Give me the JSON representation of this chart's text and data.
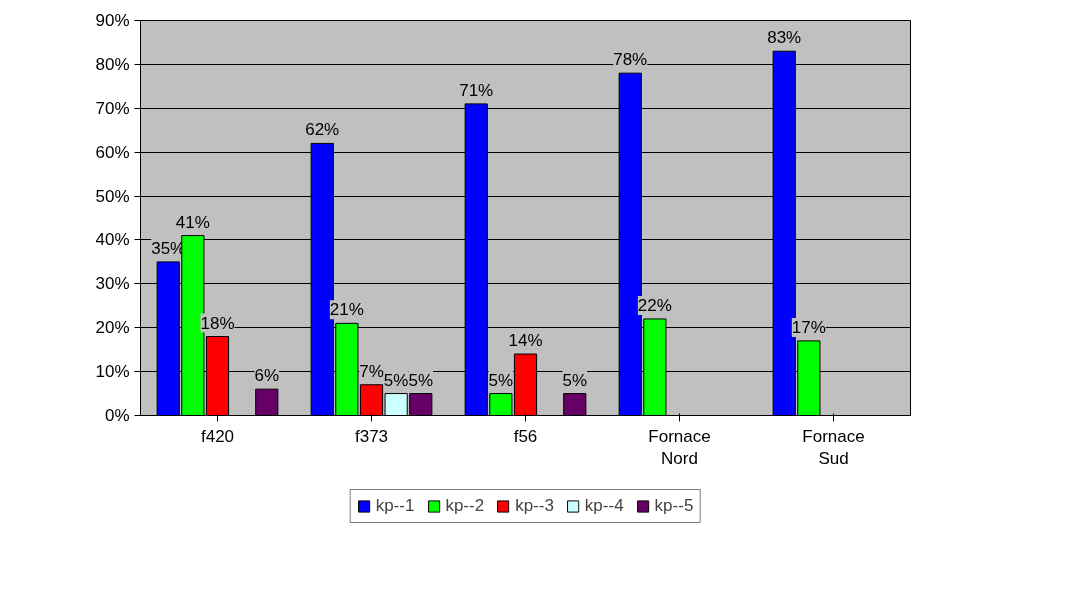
{
  "chart_data": {
    "type": "bar",
    "categories": [
      "f420",
      "f373",
      "f56",
      "Fornace Nord",
      "Fornace Sud"
    ],
    "series": [
      {
        "name": "kp--1",
        "color": "#0000ff",
        "values": [
          35,
          62,
          71,
          78,
          83
        ],
        "value_labels": [
          "35%",
          "62%",
          "71%",
          "78%",
          "83%"
        ]
      },
      {
        "name": "kp--2",
        "color": "#00ff00",
        "values": [
          41,
          21,
          5,
          22,
          17
        ],
        "value_labels": [
          "41%",
          "21%",
          "5%",
          "22%",
          "17%"
        ]
      },
      {
        "name": "kp--3",
        "color": "#ff0000",
        "values": [
          18,
          7,
          14,
          null,
          null
        ],
        "value_labels": [
          "18%",
          "7%",
          "14%",
          null,
          null
        ]
      },
      {
        "name": "kp--4",
        "color": "#ccffff",
        "values": [
          null,
          5,
          null,
          null,
          null
        ],
        "value_labels": [
          null,
          "5%",
          null,
          null,
          null
        ]
      },
      {
        "name": "kp--5",
        "color": "#660066",
        "values": [
          6,
          5,
          5,
          null,
          null
        ],
        "value_labels": [
          "6%",
          "5%",
          "5%",
          null,
          null
        ]
      }
    ],
    "ylim": [
      0,
      90
    ],
    "yticks": [
      {
        "value": 0,
        "label": "0%"
      },
      {
        "value": 10,
        "label": "10%"
      },
      {
        "value": 20,
        "label": "20%"
      },
      {
        "value": 30,
        "label": "30%"
      },
      {
        "value": 40,
        "label": "40%"
      },
      {
        "value": 50,
        "label": "50%"
      },
      {
        "value": 60,
        "label": "60%"
      },
      {
        "value": 70,
        "label": "70%"
      },
      {
        "value": 80,
        "label": "80%"
      },
      {
        "value": 90,
        "label": "90%"
      }
    ],
    "grid": "y",
    "legend": "bottom"
  }
}
